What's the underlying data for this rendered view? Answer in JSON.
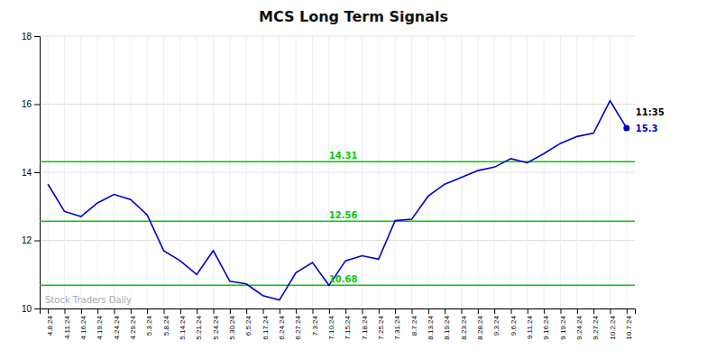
{
  "chart_data": {
    "type": "line",
    "title": "MCS Long Term Signals",
    "categories": [
      "4.8.24",
      "4.11.24",
      "4.16.24",
      "4.19.24",
      "4.24.24",
      "4.29.24",
      "5.3.24",
      "5.8.24",
      "5.14.24",
      "5.21.24",
      "5.24.24",
      "5.30.24",
      "6.5.24",
      "6.17.24",
      "6.24.24",
      "6.27.24",
      "7.3.24",
      "7.10.24",
      "7.15.24",
      "7.18.24",
      "7.25.24",
      "7.31.24",
      "8.7.24",
      "8.13.24",
      "8.19.24",
      "8.23.24",
      "8.28.24",
      "9.3.24",
      "9.6.24",
      "9.11.24",
      "9.16.24",
      "9.19.24",
      "9.24.24",
      "9.27.24",
      "10.2.24",
      "10.7.24"
    ],
    "values": [
      13.65,
      12.85,
      12.7,
      13.1,
      13.35,
      13.2,
      12.75,
      11.7,
      11.4,
      11.0,
      11.7,
      10.8,
      10.72,
      10.38,
      10.25,
      11.05,
      11.35,
      10.68,
      11.4,
      11.55,
      11.45,
      12.58,
      12.62,
      13.3,
      13.65,
      13.85,
      14.05,
      14.15,
      14.4,
      14.28,
      14.55,
      14.85,
      15.05,
      15.15,
      16.1,
      15.3
    ],
    "color": "#0000cc",
    "ylim": [
      10,
      18
    ],
    "yticks": [
      10,
      12,
      14,
      16,
      18
    ],
    "grid": true,
    "reference_lines": {
      "values": [
        10.68,
        12.56,
        14.31
      ],
      "labels": [
        "10.68",
        "12.56",
        "14.31"
      ],
      "color": "#00cc00"
    },
    "annotations": [
      {
        "text": "11:35"
      },
      {
        "text": "15.3",
        "value": 15.3
      }
    ],
    "watermark": "Stock Traders Daily"
  }
}
